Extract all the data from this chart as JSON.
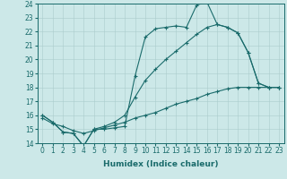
{
  "xlabel": "Humidex (Indice chaleur)",
  "xlim": [
    -0.5,
    23.5
  ],
  "ylim": [
    14,
    24
  ],
  "xticks": [
    0,
    1,
    2,
    3,
    4,
    5,
    6,
    7,
    8,
    9,
    10,
    11,
    12,
    13,
    14,
    15,
    16,
    17,
    18,
    19,
    20,
    21,
    22,
    23
  ],
  "yticks": [
    14,
    15,
    16,
    17,
    18,
    19,
    20,
    21,
    22,
    23,
    24
  ],
  "bg_color": "#cce8e8",
  "grid_color": "#aacccc",
  "line_color": "#1a6b6b",
  "line1_x": [
    0,
    1,
    2,
    3,
    4,
    5,
    6,
    7,
    8,
    9,
    10,
    11,
    12,
    13,
    14,
    15,
    16,
    17,
    18,
    19,
    20,
    21,
    22,
    23
  ],
  "line1_y": [
    16.0,
    15.5,
    14.8,
    14.7,
    13.8,
    15.0,
    15.0,
    15.1,
    15.2,
    18.8,
    21.6,
    22.2,
    22.3,
    22.4,
    22.3,
    23.9,
    24.1,
    22.5,
    22.3,
    21.9,
    20.5,
    18.3,
    18.0,
    18.0
  ],
  "line2_x": [
    0,
    1,
    2,
    3,
    4,
    5,
    6,
    7,
    8,
    9,
    10,
    11,
    12,
    13,
    14,
    15,
    16,
    17,
    18,
    19,
    20,
    21,
    22,
    23
  ],
  "line2_y": [
    16.0,
    15.5,
    14.8,
    14.7,
    13.8,
    15.0,
    15.2,
    15.5,
    16.0,
    17.3,
    18.5,
    19.3,
    20.0,
    20.6,
    21.2,
    21.8,
    22.3,
    22.5,
    22.3,
    21.9,
    20.5,
    18.3,
    18.0,
    18.0
  ],
  "line3_x": [
    0,
    1,
    2,
    3,
    4,
    5,
    6,
    7,
    8,
    9,
    10,
    11,
    12,
    13,
    14,
    15,
    16,
    17,
    18,
    19,
    20,
    21,
    22,
    23
  ],
  "line3_y": [
    15.8,
    15.4,
    15.2,
    14.9,
    14.7,
    14.9,
    15.1,
    15.3,
    15.5,
    15.8,
    16.0,
    16.2,
    16.5,
    16.8,
    17.0,
    17.2,
    17.5,
    17.7,
    17.9,
    18.0,
    18.0,
    18.0,
    18.0,
    18.0
  ],
  "tick_fontsize": 5.5,
  "xlabel_fontsize": 6.5,
  "linewidth": 0.8,
  "markersize": 2.5
}
